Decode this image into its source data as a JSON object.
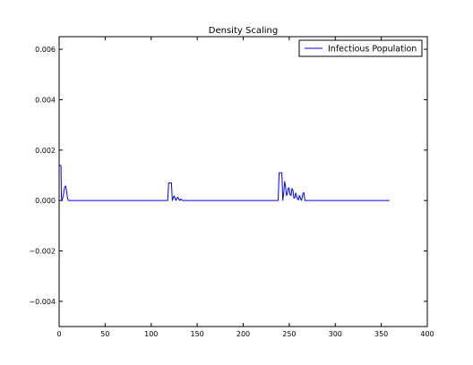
{
  "chart_data": {
    "type": "line",
    "title": "Density Scaling",
    "xlabel": "",
    "ylabel": "",
    "xlim": [
      0,
      400
    ],
    "ylim": [
      -0.005,
      0.0065
    ],
    "xticks": [
      0,
      50,
      100,
      150,
      200,
      250,
      300,
      350,
      400
    ],
    "xtick_labels": [
      "0",
      "50",
      "100",
      "150",
      "200",
      "250",
      "300",
      "350",
      "400"
    ],
    "yticks": [
      -0.004,
      -0.002,
      0.0,
      0.002,
      0.004,
      0.006
    ],
    "ytick_labels": [
      "−0.004",
      "−0.002",
      "0.000",
      "0.002",
      "0.004",
      "0.006"
    ],
    "grid": false,
    "legend_position": "top-right",
    "series": [
      {
        "name": "Infectious Population",
        "color": "#0000ff",
        "x": [
          0,
          0.5,
          1,
          2,
          2.5,
          3,
          4,
          5,
          6,
          7,
          8,
          9,
          10,
          11,
          12,
          13,
          14,
          15,
          20,
          30,
          50,
          80,
          100,
          115,
          118,
          119,
          120,
          122,
          123,
          124,
          125,
          126,
          127,
          128,
          129,
          130,
          131,
          132,
          133,
          134,
          135,
          150,
          200,
          230,
          238,
          239,
          240,
          242,
          243,
          244,
          245,
          246,
          247,
          248,
          249,
          250,
          251,
          252,
          253,
          254,
          255,
          256,
          257,
          258,
          259,
          260,
          261,
          262,
          263,
          264,
          265,
          266,
          267,
          268,
          270,
          300,
          340,
          359
        ],
        "values": [
          0.0014,
          0.0014,
          0.0014,
          0.00138,
          0.0001,
          0.0,
          0.0001,
          0.0003,
          0.00052,
          0.00058,
          0.0004,
          0.00012,
          0.0,
          0.0,
          0.0,
          0.0,
          0.0,
          0.0,
          0.0,
          0.0,
          0.0,
          0.0,
          0.0,
          0.0,
          0.0,
          0.0007,
          0.0007,
          0.0007,
          0.0,
          0.00012,
          0.00018,
          8e-05,
          0.0,
          0.0001,
          0.00013,
          5e-05,
          0.0,
          6e-05,
          3e-05,
          0.0,
          0.0,
          0.0,
          0.0,
          0.0,
          0.0,
          0.0011,
          0.0011,
          0.0011,
          0.0,
          0.0003,
          0.00075,
          0.00055,
          0.0002,
          0.00025,
          0.0005,
          0.00048,
          0.00022,
          0.0002,
          0.00048,
          0.0004,
          0.0001,
          0.0001,
          0.0003,
          0.00018,
          5e-05,
          3e-05,
          0.0002,
          0.00012,
          0.0,
          0.0001,
          0.0003,
          0.0003,
          0.0,
          0.0,
          0.0,
          0.0,
          0.0,
          0.0
        ]
      }
    ]
  }
}
